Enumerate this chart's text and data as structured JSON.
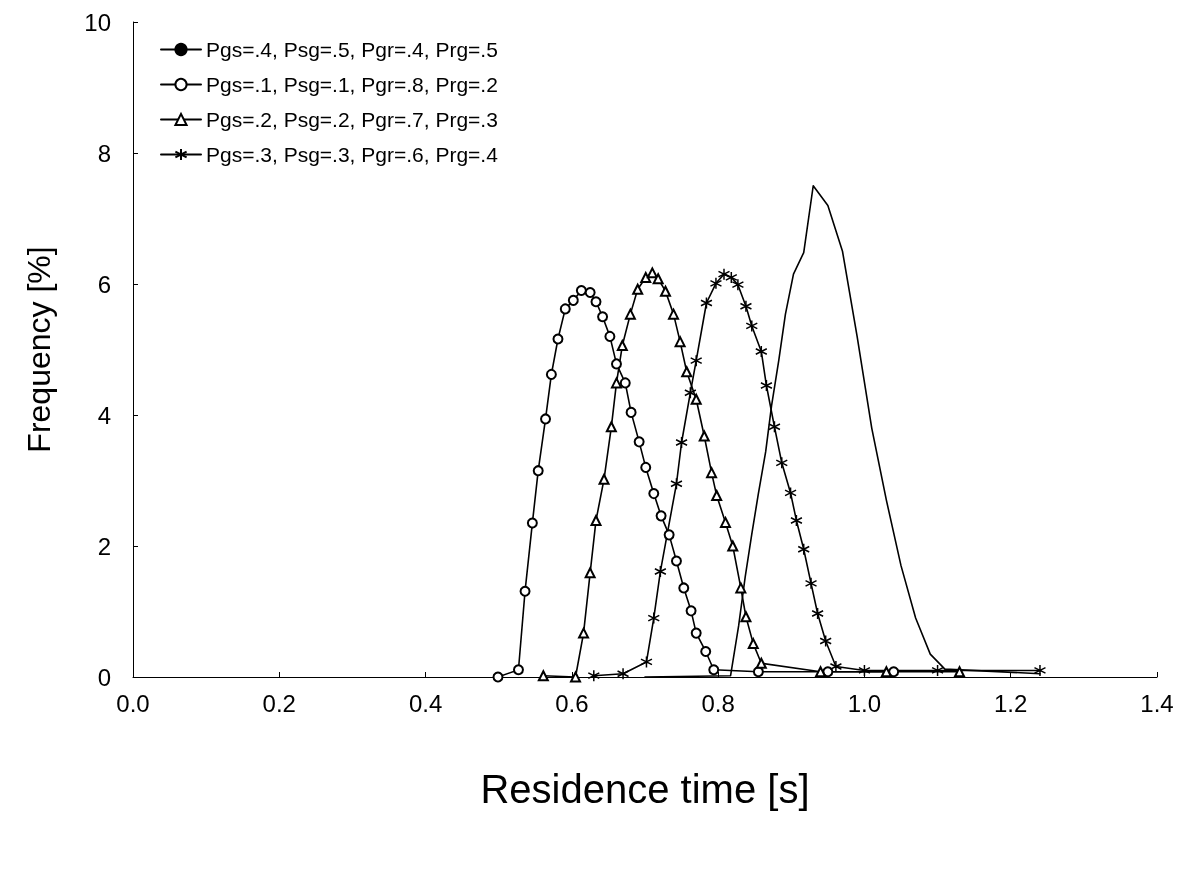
{
  "chart_data": {
    "type": "line",
    "xlabel": "Residence time [s]",
    "ylabel": "Frequency [%]",
    "xlim": [
      0,
      1.4
    ],
    "xticks": [
      {
        "value": 0,
        "label": "0.0"
      },
      {
        "value": 0.2,
        "label": "0.2"
      },
      {
        "value": 0.4,
        "label": "0.4"
      },
      {
        "value": 0.6,
        "label": "0.6"
      },
      {
        "value": 0.8,
        "label": "0.8"
      },
      {
        "value": 1.0,
        "label": "1.0"
      },
      {
        "value": 1.2,
        "label": "1.2"
      },
      {
        "value": 1.4,
        "label": "1.4"
      }
    ],
    "ylim": [
      0,
      10
    ],
    "yticks": [
      0,
      2,
      4,
      6,
      8,
      10
    ],
    "grid": false,
    "legend": "top left",
    "line_style": "solid",
    "series": [
      {
        "name": "Pgs=.4, Psg=.5, Pgr=.4, Prg=.5",
        "color": "#000000",
        "marker": "none",
        "x": [
          0.7,
          0.817,
          0.828,
          0.837,
          0.846,
          0.855,
          0.865,
          0.873,
          0.883,
          0.892,
          0.903,
          0.917,
          0.93,
          0.95,
          0.97,
          0.99,
          1.01,
          1.03,
          1.05,
          1.07,
          1.09,
          1.11,
          1.24
        ],
        "values": [
          0,
          0.02,
          0.78,
          1.53,
          2.18,
          2.8,
          3.44,
          4.14,
          4.84,
          5.54,
          6.15,
          6.48,
          7.5,
          7.2,
          6.5,
          5.2,
          3.8,
          2.7,
          1.7,
          0.9,
          0.35,
          0.12,
          0.05
        ]
      },
      {
        "name": "Pgs=.1, Psg=.1, Pgr=.8, Prg=.2",
        "color": "#000000",
        "marker": "circle",
        "x": [
          0.499,
          0.527,
          0.536,
          0.546,
          0.554,
          0.564,
          0.572,
          0.581,
          0.591,
          0.602,
          0.613,
          0.625,
          0.633,
          0.642,
          0.652,
          0.661,
          0.673,
          0.681,
          0.692,
          0.701,
          0.712,
          0.722,
          0.733,
          0.743,
          0.753,
          0.763,
          0.77,
          0.783,
          0.794,
          0.855,
          0.95,
          1.04
        ],
        "values": [
          0,
          0.11,
          1.31,
          2.35,
          3.15,
          3.94,
          4.62,
          5.16,
          5.62,
          5.75,
          5.9,
          5.87,
          5.73,
          5.5,
          5.2,
          4.78,
          4.49,
          4.04,
          3.59,
          3.2,
          2.8,
          2.46,
          2.17,
          1.77,
          1.36,
          1.01,
          0.67,
          0.39,
          0.11,
          0.08,
          0.08,
          0.08
        ]
      },
      {
        "name": "Pgs=.2, Psg=.2, Pgr=.7, Prg=.3",
        "color": "#000000",
        "marker": "triangle",
        "x": [
          0.561,
          0.605,
          0.616,
          0.625,
          0.633,
          0.644,
          0.654,
          0.661,
          0.669,
          0.68,
          0.69,
          0.701,
          0.71,
          0.718,
          0.728,
          0.739,
          0.748,
          0.757,
          0.77,
          0.781,
          0.791,
          0.798,
          0.81,
          0.82,
          0.831,
          0.838,
          0.848,
          0.859,
          0.94,
          1.03,
          1.13
        ],
        "values": [
          0.02,
          0,
          0.67,
          1.59,
          2.39,
          3.02,
          3.82,
          4.49,
          5.06,
          5.54,
          5.92,
          6.1,
          6.17,
          6.08,
          5.89,
          5.54,
          5.12,
          4.66,
          4.24,
          3.68,
          3.12,
          2.77,
          2.36,
          2.0,
          1.36,
          0.92,
          0.51,
          0.21,
          0.08,
          0.08,
          0.08
        ]
      },
      {
        "name": "Pgs=.3, Psg=.3, Pgr=.6, Prg=.4",
        "color": "#000000",
        "marker": "cross",
        "x": [
          0.63,
          0.67,
          0.702,
          0.712,
          0.721,
          0.743,
          0.75,
          0.762,
          0.77,
          0.784,
          0.797,
          0.808,
          0.818,
          0.827,
          0.838,
          0.846,
          0.859,
          0.866,
          0.877,
          0.887,
          0.899,
          0.907,
          0.917,
          0.927,
          0.936,
          0.947,
          0.961,
          1.0,
          1.1,
          1.24
        ],
        "values": [
          0.02,
          0.05,
          0.23,
          0.9,
          1.61,
          2.95,
          3.58,
          4.34,
          4.83,
          5.71,
          6.01,
          6.15,
          6.1,
          5.99,
          5.66,
          5.36,
          4.97,
          4.45,
          3.82,
          3.27,
          2.81,
          2.39,
          1.95,
          1.43,
          0.97,
          0.55,
          0.16,
          0.1,
          0.1,
          0.1
        ]
      }
    ]
  }
}
